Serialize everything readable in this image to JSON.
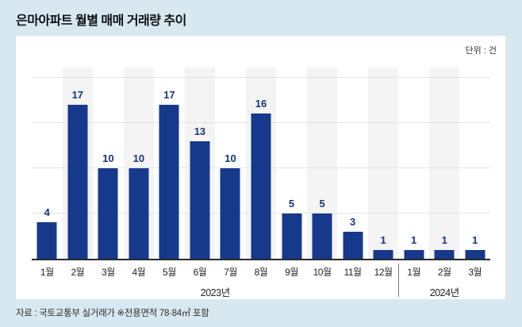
{
  "page": {
    "title": "은마아파트 월별 매매 거래량 추이",
    "unit_label": "단위 : 건",
    "source": "자료 : 국토교통부 실거래가 ※전용면적 78·84㎡ 포함"
  },
  "colors": {
    "background": "#d7e8f1",
    "card": "#ffffff",
    "bar": "#16398c",
    "value_label": "#17357a",
    "stripe": "#f4f4f4",
    "gridline": "#e3e3e3",
    "axis": "#2a2a2a"
  },
  "chart_data": {
    "type": "bar",
    "title": "은마아파트 월별 매매 거래량 추이",
    "ylabel": "건",
    "categories": [
      "1월",
      "2월",
      "3월",
      "4월",
      "5월",
      "6월",
      "7월",
      "8월",
      "9월",
      "10월",
      "11월",
      "12월",
      "1월",
      "2월",
      "3월"
    ],
    "values": [
      4,
      17,
      10,
      10,
      17,
      13,
      10,
      16,
      5,
      5,
      3,
      1,
      1,
      1,
      1
    ],
    "ylim": [
      0,
      21.3
    ],
    "gridlines": [
      5,
      10,
      15,
      20
    ],
    "grid": "horizontal",
    "legend": false,
    "value_labels": true,
    "striped_columns": "even",
    "year_groups": [
      {
        "label": "2023년",
        "start_index": 0,
        "count": 12
      },
      {
        "label": "2024년",
        "start_index": 12,
        "count": 3
      }
    ]
  }
}
